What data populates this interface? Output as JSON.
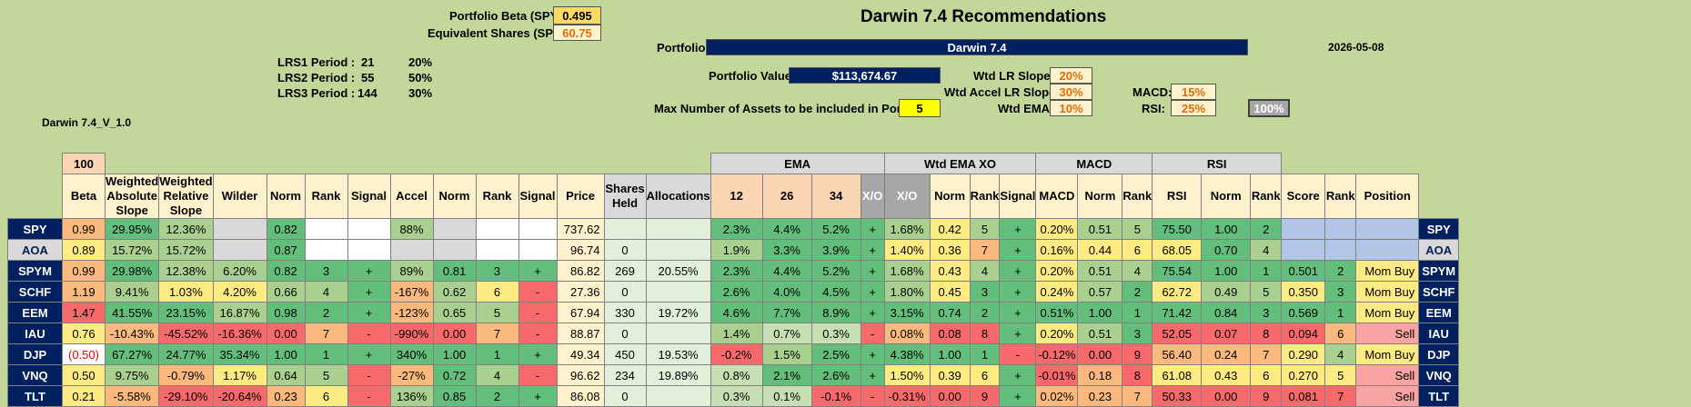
{
  "header": {
    "title": "Darwin 7.4 Recommendations",
    "portfolio_beta_label": "Portfolio Beta (SPY):",
    "portfolio_beta": "0.495",
    "equiv_shares_label": "Equivalent Shares (SPY):",
    "equiv_shares": "60.75",
    "portfolio_label": "Portfolio:",
    "portfolio_name": "Darwin 7.4",
    "date": "2026-05-08",
    "portfolio_value_label": "Portfolio Value:",
    "portfolio_value": "$113,674.67",
    "max_assets_label": "Max Number of Assets to be included in Portfolio:",
    "max_assets": "5",
    "version": "Darwin 7.4_V_1.0",
    "wtd_lr_slope_label": "Wtd LR Slope:",
    "wtd_lr_slope": "20%",
    "wtd_accel_label": "Wtd Accel LR Slope:",
    "wtd_accel": "30%",
    "wtd_ema_label": "Wtd EMA:",
    "wtd_ema": "10%",
    "macd_label": "MACD:",
    "macd": "15%",
    "rsi_label": "RSI:",
    "rsi": "25%",
    "total": "100%"
  },
  "lrs": [
    {
      "label": "LRS1 Period :",
      "period": "21",
      "weight": "20%"
    },
    {
      "label": "LRS2 Period :",
      "period": "55",
      "weight": "50%"
    },
    {
      "label": "LRS3 Period :",
      "period": "144",
      "weight": "30%"
    }
  ],
  "table": {
    "beta_top": "100",
    "group_ema": "EMA",
    "group_wtd_ema_xo": "Wtd EMA XO",
    "group_macd": "MACD",
    "group_rsi": "RSI",
    "cols": [
      "Beta",
      "Weighted Absolute Slope",
      "Weighted Relative Slope",
      "Wilder",
      "Norm",
      "Rank",
      "Signal",
      "Accel",
      "Norm",
      "Rank",
      "Signal",
      "Price",
      "Shares Held",
      "Allocations",
      "12",
      "26",
      "34",
      "X/O",
      "X/O",
      "Norm",
      "Rank",
      "Signal",
      "MACD",
      "Norm",
      "Rank",
      "RSI",
      "Norm",
      "Rank",
      "Score",
      "Rank",
      "Position"
    ],
    "rows": [
      {
        "sym": "SPY",
        "c": [
          "0.99",
          "29.95%",
          "12.36%",
          "",
          "0.82",
          "",
          "",
          "88%",
          "",
          "",
          "",
          "737.62",
          "",
          "",
          "2.3%",
          "4.4%",
          "5.2%",
          "+",
          "1.68%",
          "0.42",
          "5",
          "+",
          "0.20%",
          "0.51",
          "5",
          "75.50",
          "1.00",
          "2",
          "",
          "",
          ""
        ]
      },
      {
        "sym": "AOA",
        "c": [
          "0.89",
          "15.72%",
          "15.72%",
          "",
          "0.87",
          "",
          "",
          "",
          "",
          "",
          "",
          "96.74",
          "0",
          "",
          "1.9%",
          "3.3%",
          "3.9%",
          "+",
          "1.40%",
          "0.36",
          "7",
          "+",
          "0.16%",
          "0.44",
          "6",
          "68.05",
          "0.70",
          "4",
          "",
          "",
          ""
        ]
      },
      {
        "sym": "SPYM",
        "c": [
          "0.99",
          "29.98%",
          "12.38%",
          "6.20%",
          "0.82",
          "3",
          "+",
          "89%",
          "0.81",
          "3",
          "+",
          "86.82",
          "269",
          "20.55%",
          "2.3%",
          "4.4%",
          "5.2%",
          "+",
          "1.68%",
          "0.43",
          "4",
          "+",
          "0.20%",
          "0.51",
          "4",
          "75.54",
          "1.00",
          "1",
          "0.501",
          "2",
          "Mom Buy"
        ]
      },
      {
        "sym": "SCHF",
        "c": [
          "1.19",
          "9.41%",
          "1.03%",
          "4.20%",
          "0.66",
          "4",
          "+",
          "-167%",
          "0.62",
          "6",
          "-",
          "27.36",
          "0",
          "",
          "2.6%",
          "4.0%",
          "4.5%",
          "+",
          "1.80%",
          "0.45",
          "3",
          "+",
          "0.24%",
          "0.57",
          "2",
          "62.72",
          "0.49",
          "5",
          "0.350",
          "3",
          "Mom Buy"
        ]
      },
      {
        "sym": "EEM",
        "c": [
          "1.47",
          "41.55%",
          "23.15%",
          "16.87%",
          "0.98",
          "2",
          "+",
          "-123%",
          "0.65",
          "5",
          "-",
          "67.94",
          "330",
          "19.72%",
          "4.6%",
          "7.7%",
          "8.9%",
          "+",
          "3.15%",
          "0.74",
          "2",
          "+",
          "0.51%",
          "1.00",
          "1",
          "71.42",
          "0.84",
          "3",
          "0.569",
          "1",
          "Mom Buy"
        ]
      },
      {
        "sym": "IAU",
        "c": [
          "0.76",
          "-10.43%",
          "-45.52%",
          "-16.36%",
          "0.00",
          "7",
          "-",
          "-990%",
          "0.00",
          "7",
          "-",
          "88.87",
          "0",
          "",
          "1.4%",
          "0.7%",
          "0.3%",
          "-",
          "0.08%",
          "0.08",
          "8",
          "+",
          "0.20%",
          "0.51",
          "3",
          "52.05",
          "0.07",
          "8",
          "0.094",
          "6",
          "Sell"
        ]
      },
      {
        "sym": "DJP",
        "c": [
          "(0.50)",
          "67.27%",
          "24.77%",
          "35.34%",
          "1.00",
          "1",
          "+",
          "340%",
          "1.00",
          "1",
          "+",
          "49.34",
          "450",
          "19.53%",
          "-0.2%",
          "1.5%",
          "2.5%",
          "+",
          "4.38%",
          "1.00",
          "1",
          "-",
          "-0.12%",
          "0.00",
          "9",
          "56.40",
          "0.24",
          "7",
          "0.290",
          "4",
          "Mom Buy"
        ]
      },
      {
        "sym": "VNQ",
        "c": [
          "0.50",
          "9.75%",
          "-0.79%",
          "1.17%",
          "0.64",
          "5",
          "-",
          "-27%",
          "0.72",
          "4",
          "-",
          "96.62",
          "234",
          "19.89%",
          "0.8%",
          "2.1%",
          "2.6%",
          "+",
          "1.50%",
          "0.39",
          "6",
          "+",
          "-0.01%",
          "0.18",
          "8",
          "61.08",
          "0.43",
          "6",
          "0.270",
          "5",
          "Sell"
        ]
      },
      {
        "sym": "TLT",
        "c": [
          "0.21",
          "-5.58%",
          "-29.10%",
          "-20.64%",
          "0.23",
          "6",
          "-",
          "136%",
          "0.85",
          "2",
          "+",
          "86.08",
          "0",
          "",
          "0.3%",
          "0.1%",
          "-0.1%",
          "-",
          "-0.31%",
          "0.00",
          "9",
          "+",
          "0.02%",
          "0.23",
          "7",
          "50.33",
          "0.00",
          "9",
          "0.081",
          "7",
          "Sell"
        ]
      }
    ]
  },
  "colors": {
    "background": "#c4d79b",
    "navy": "#002060",
    "green": "#63be7b",
    "yellow": "#ffeb84",
    "red": "#f8696b"
  }
}
